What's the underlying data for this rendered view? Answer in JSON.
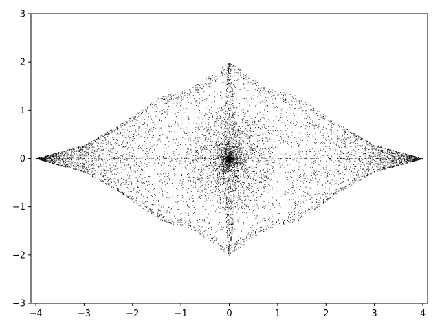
{
  "chart_data": {
    "type": "scatter",
    "title": "",
    "xlabel": "",
    "ylabel": "",
    "xlim": [
      -4.1,
      4.1
    ],
    "ylim": [
      -3,
      3
    ],
    "xticks": [
      -4,
      -3,
      -2,
      -1,
      0,
      1,
      2,
      3,
      4
    ],
    "xtick_labels": [
      "−4",
      "−3",
      "−2",
      "−1",
      "0",
      "1",
      "2",
      "3",
      "4"
    ],
    "yticks": [
      -3,
      -2,
      -1,
      0,
      1,
      2,
      3
    ],
    "ytick_labels": [
      "−3",
      "−2",
      "−1",
      "0",
      "1",
      "2",
      "3"
    ],
    "grid": false,
    "legend": "none",
    "marker_color": "#000000",
    "series": [
      {
        "x_range": [
          -4,
          4
        ],
        "y_range": [
          -2,
          2
        ],
        "description_points": [
          {
            "x": -4,
            "y": 0
          },
          {
            "x": -3,
            "y": 0.28
          },
          {
            "x": -2.7,
            "y": 0.45
          },
          {
            "x": -2.2,
            "y": 0.75
          },
          {
            "x": -1.4,
            "y": 1.3
          },
          {
            "x": -0.8,
            "y": 1.45
          },
          {
            "x": 0,
            "y": 2
          },
          {
            "x": 0.8,
            "y": 1.45
          },
          {
            "x": 1.4,
            "y": 1.3
          },
          {
            "x": 2.2,
            "y": 0.75
          },
          {
            "x": 2.7,
            "y": 0.45
          },
          {
            "x": 3,
            "y": 0.28
          },
          {
            "x": 4,
            "y": 0
          }
        ]
      }
    ]
  }
}
